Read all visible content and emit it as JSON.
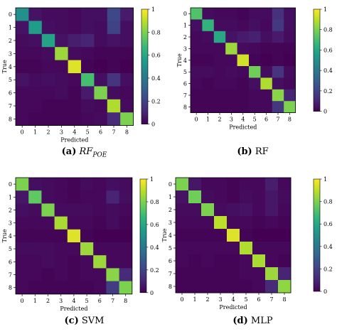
{
  "colors": {
    "viridis": [
      "#440154",
      "#482878",
      "#3e4989",
      "#31688e",
      "#26828e",
      "#1f9e89",
      "#35b779",
      "#6ece58",
      "#b5de2b",
      "#fde725"
    ],
    "axis": "#000000"
  },
  "chart_data": [
    {
      "type": "heatmap",
      "caption_label": "(a)",
      "caption_name_main": "RF",
      "caption_name_sub": "POE",
      "xlabel": "Predicted",
      "ylabel": "True",
      "x_ticks": [
        "0",
        "1",
        "2",
        "3",
        "4",
        "5",
        "6",
        "7",
        "8"
      ],
      "y_ticks": [
        "0",
        "1",
        "2",
        "3",
        "4",
        "5",
        "6",
        "7",
        "8"
      ],
      "colorbar_ticks": [
        "0",
        "0.2",
        "0.4",
        "0.6",
        "0.8",
        "1"
      ],
      "vmin": 0,
      "vmax": 1,
      "matrix": [
        [
          0.5,
          0.05,
          0.03,
          0.03,
          0.02,
          0.04,
          0.04,
          0.22,
          0.07
        ],
        [
          0.05,
          0.55,
          0.04,
          0.03,
          0.02,
          0.04,
          0.03,
          0.2,
          0.04
        ],
        [
          0.03,
          0.04,
          0.58,
          0.05,
          0.08,
          0.1,
          0.03,
          0.05,
          0.04
        ],
        [
          0.02,
          0.02,
          0.03,
          0.85,
          0.03,
          0.02,
          0.01,
          0.01,
          0.01
        ],
        [
          0.01,
          0.01,
          0.02,
          0.02,
          0.95,
          0.01,
          0.0,
          0.01,
          0.0
        ],
        [
          0.05,
          0.03,
          0.04,
          0.03,
          0.02,
          0.7,
          0.04,
          0.15,
          0.04
        ],
        [
          0.02,
          0.02,
          0.02,
          0.03,
          0.01,
          0.07,
          0.8,
          0.03,
          0.02
        ],
        [
          0.02,
          0.02,
          0.01,
          0.01,
          0.01,
          0.03,
          0.02,
          0.88,
          0.03
        ],
        [
          0.02,
          0.01,
          0.01,
          0.01,
          0.01,
          0.02,
          0.03,
          0.12,
          0.8
        ]
      ]
    },
    {
      "type": "heatmap",
      "caption_label": "(b)",
      "caption_name_main": "RF",
      "caption_name_sub": "",
      "xlabel": "Predicted",
      "ylabel": "True",
      "x_ticks": [
        "0",
        "1",
        "2",
        "3",
        "4",
        "5",
        "6",
        "7",
        "8"
      ],
      "y_ticks": [
        "0",
        "1",
        "2",
        "3",
        "4",
        "5",
        "6",
        "7",
        "8"
      ],
      "colorbar_ticks": [
        "0",
        "0.2",
        "0.4",
        "0.6",
        "0.8",
        "1"
      ],
      "vmin": 0,
      "vmax": 1,
      "matrix": [
        [
          0.72,
          0.03,
          0.02,
          0.02,
          0.01,
          0.03,
          0.03,
          0.14,
          0.04
        ],
        [
          0.04,
          0.65,
          0.03,
          0.03,
          0.02,
          0.04,
          0.02,
          0.17,
          0.04
        ],
        [
          0.02,
          0.03,
          0.6,
          0.05,
          0.07,
          0.09,
          0.04,
          0.07,
          0.03
        ],
        [
          0.02,
          0.02,
          0.02,
          0.85,
          0.03,
          0.02,
          0.01,
          0.01,
          0.01
        ],
        [
          0.01,
          0.01,
          0.02,
          0.02,
          0.93,
          0.01,
          0.0,
          0.01,
          0.0
        ],
        [
          0.03,
          0.03,
          0.02,
          0.03,
          0.02,
          0.78,
          0.03,
          0.15,
          0.03
        ],
        [
          0.02,
          0.01,
          0.02,
          0.02,
          0.01,
          0.04,
          0.88,
          0.04,
          0.02
        ],
        [
          0.01,
          0.01,
          0.01,
          0.01,
          0.01,
          0.02,
          0.02,
          0.82,
          0.1
        ],
        [
          0.01,
          0.01,
          0.01,
          0.01,
          0.01,
          0.02,
          0.02,
          0.16,
          0.8
        ]
      ]
    },
    {
      "type": "heatmap",
      "caption_label": "(c)",
      "caption_name_main": "SVM",
      "caption_name_sub": "",
      "xlabel": "Predicted",
      "ylabel": "True",
      "x_ticks": [
        "0",
        "1",
        "2",
        "3",
        "4",
        "5",
        "6",
        "7",
        "8"
      ],
      "y_ticks": [
        "0",
        "1",
        "2",
        "3",
        "4",
        "5",
        "6",
        "7",
        "8"
      ],
      "colorbar_ticks": [
        "0",
        "0.2",
        "0.4",
        "0.6",
        "0.8",
        "1"
      ],
      "vmin": 0,
      "vmax": 1,
      "matrix": [
        [
          0.8,
          0.04,
          0.03,
          0.02,
          0.01,
          0.03,
          0.02,
          0.04,
          0.03
        ],
        [
          0.06,
          0.75,
          0.03,
          0.02,
          0.01,
          0.02,
          0.02,
          0.1,
          0.04
        ],
        [
          0.04,
          0.03,
          0.8,
          0.03,
          0.03,
          0.03,
          0.02,
          0.03,
          0.02
        ],
        [
          0.02,
          0.02,
          0.02,
          0.87,
          0.02,
          0.02,
          0.01,
          0.03,
          0.01
        ],
        [
          0.01,
          0.01,
          0.01,
          0.01,
          0.95,
          0.01,
          0.0,
          0.0,
          0.0
        ],
        [
          0.03,
          0.03,
          0.03,
          0.02,
          0.02,
          0.85,
          0.02,
          0.02,
          0.02
        ],
        [
          0.02,
          0.02,
          0.03,
          0.02,
          0.01,
          0.02,
          0.85,
          0.02,
          0.02
        ],
        [
          0.02,
          0.02,
          0.01,
          0.02,
          0.01,
          0.02,
          0.02,
          0.82,
          0.12
        ],
        [
          0.02,
          0.01,
          0.01,
          0.01,
          0.01,
          0.01,
          0.02,
          0.18,
          0.8
        ]
      ]
    },
    {
      "type": "heatmap",
      "caption_label": "(d)",
      "caption_name_main": "MLP",
      "caption_name_sub": "",
      "xlabel": "Predicted",
      "ylabel": "True",
      "x_ticks": [
        "0",
        "1",
        "2",
        "3",
        "4",
        "5",
        "6",
        "7",
        "8"
      ],
      "y_ticks": [
        "0",
        "1",
        "2",
        "3",
        "4",
        "5",
        "6",
        "7",
        "8"
      ],
      "colorbar_ticks": [
        "0",
        "0.2",
        "0.4",
        "0.6",
        "0.8",
        "1"
      ],
      "vmin": 0,
      "vmax": 1,
      "matrix": [
        [
          0.8,
          0.06,
          0.02,
          0.02,
          0.01,
          0.02,
          0.02,
          0.08,
          0.02
        ],
        [
          0.05,
          0.78,
          0.03,
          0.02,
          0.01,
          0.03,
          0.02,
          0.06,
          0.03
        ],
        [
          0.03,
          0.03,
          0.8,
          0.03,
          0.04,
          0.05,
          0.02,
          0.06,
          0.02
        ],
        [
          0.02,
          0.02,
          0.02,
          0.9,
          0.02,
          0.02,
          0.01,
          0.02,
          0.01
        ],
        [
          0.01,
          0.01,
          0.01,
          0.01,
          0.95,
          0.01,
          0.0,
          0.0,
          0.0
        ],
        [
          0.02,
          0.02,
          0.02,
          0.02,
          0.02,
          0.88,
          0.02,
          0.02,
          0.02
        ],
        [
          0.02,
          0.01,
          0.02,
          0.01,
          0.01,
          0.02,
          0.87,
          0.02,
          0.01
        ],
        [
          0.01,
          0.01,
          0.01,
          0.01,
          0.01,
          0.02,
          0.02,
          0.85,
          0.1
        ],
        [
          0.01,
          0.01,
          0.01,
          0.01,
          0.01,
          0.01,
          0.02,
          0.12,
          0.83
        ]
      ]
    }
  ]
}
